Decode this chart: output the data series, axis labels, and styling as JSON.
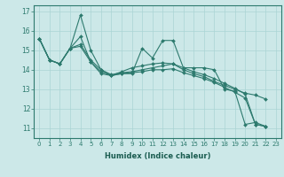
{
  "xlabel": "Humidex (Indice chaleur)",
  "background_color": "#cce8e8",
  "grid_color": "#aad4d4",
  "line_color": "#2d7a6e",
  "spine_color": "#2d7a6e",
  "tick_color": "#2d7a6e",
  "label_color": "#1a5c50",
  "ylim": [
    10.5,
    17.3
  ],
  "xlim": [
    -0.5,
    23.5
  ],
  "yticks": [
    11,
    12,
    13,
    14,
    15,
    16,
    17
  ],
  "xticks": [
    0,
    1,
    2,
    3,
    4,
    5,
    6,
    7,
    8,
    9,
    10,
    11,
    12,
    13,
    14,
    15,
    16,
    17,
    18,
    19,
    20,
    21,
    22,
    23
  ],
  "series": [
    [
      15.6,
      14.5,
      14.3,
      15.1,
      16.8,
      15.0,
      14.0,
      13.7,
      13.8,
      13.8,
      15.1,
      14.6,
      15.5,
      15.5,
      14.1,
      14.1,
      14.1,
      14.0,
      13.0,
      12.9,
      11.2,
      11.3,
      11.1
    ],
    [
      15.6,
      14.5,
      14.3,
      15.1,
      15.7,
      14.4,
      13.8,
      13.7,
      13.9,
      14.1,
      14.2,
      14.3,
      14.35,
      14.3,
      14.0,
      13.8,
      13.65,
      13.4,
      13.2,
      13.0,
      12.8,
      12.7,
      12.5
    ],
    [
      15.6,
      14.5,
      14.3,
      15.1,
      15.3,
      14.5,
      14.0,
      13.75,
      13.85,
      13.9,
      14.0,
      14.1,
      14.2,
      14.3,
      14.1,
      13.9,
      13.75,
      13.55,
      13.3,
      13.05,
      12.75,
      11.2,
      11.1
    ],
    [
      15.6,
      14.5,
      14.3,
      15.1,
      15.2,
      14.4,
      13.9,
      13.7,
      13.8,
      13.85,
      13.9,
      14.0,
      14.0,
      14.05,
      13.85,
      13.7,
      13.55,
      13.35,
      13.1,
      12.85,
      12.55,
      11.2,
      11.1
    ]
  ]
}
